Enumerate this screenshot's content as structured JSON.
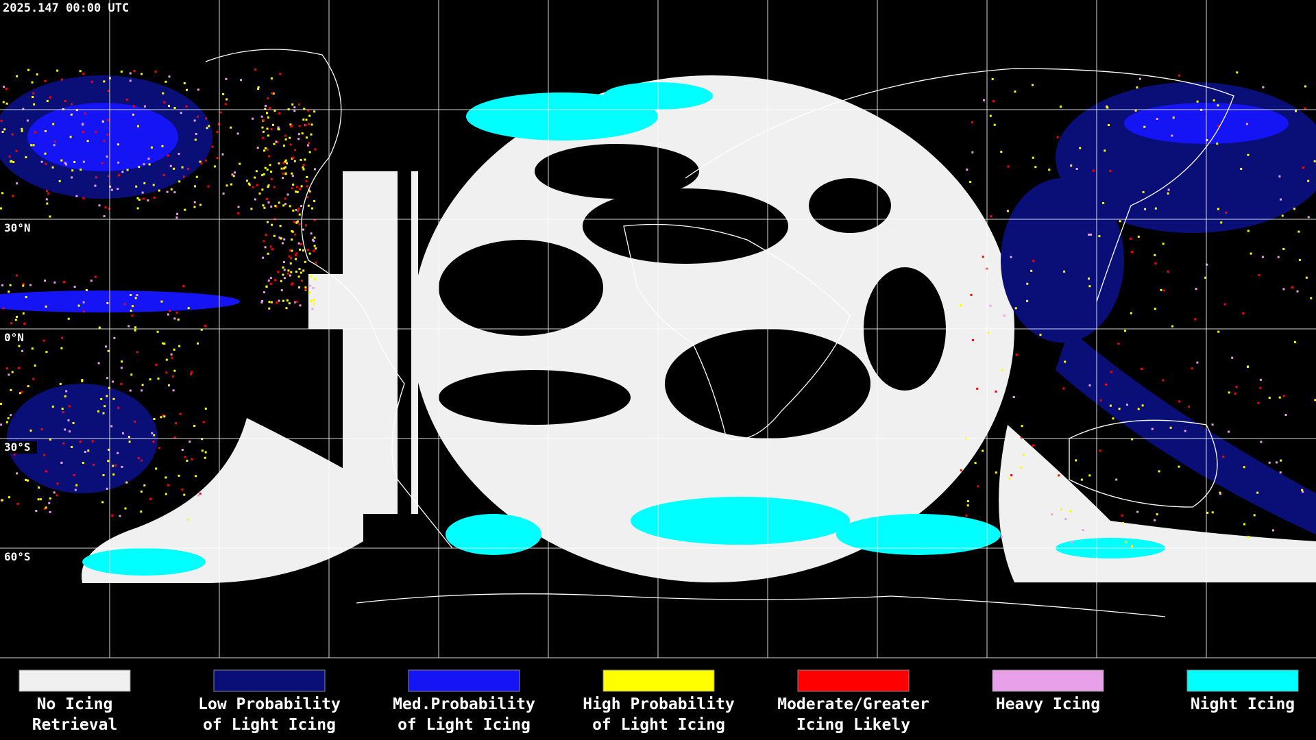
{
  "timestamp": "2025.147 00:00 UTC",
  "latitude_labels": [
    "30°N",
    "0°N",
    "30°S",
    "60°S"
  ],
  "legend": [
    {
      "label": [
        "No Icing",
        "Retrieval"
      ],
      "color": "#f0f0f0"
    },
    {
      "label": [
        "Low Probability",
        "of Light Icing"
      ],
      "color": "#0a0f78"
    },
    {
      "label": [
        "Med.Probability",
        "of Light Icing"
      ],
      "color": "#1414f5"
    },
    {
      "label": [
        "High Probability",
        "of Light Icing"
      ],
      "color": "#ffff00"
    },
    {
      "label": [
        "Moderate/Greater",
        "Icing Likely"
      ],
      "color": "#ff0000"
    },
    {
      "label": [
        "Heavy Icing"
      ],
      "color": "#e8a0e8"
    },
    {
      "label": [
        "Night Icing"
      ],
      "color": "#00ffff"
    }
  ]
}
